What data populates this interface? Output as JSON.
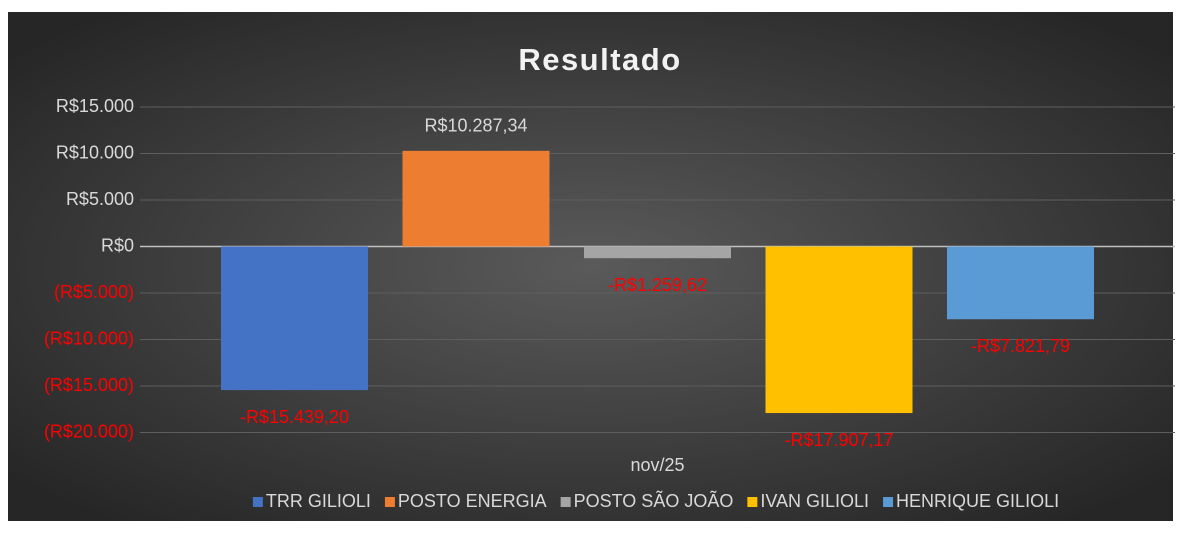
{
  "chart_data": {
    "type": "bar",
    "title": "Resultado",
    "categories": [
      "nov/25"
    ],
    "series": [
      {
        "name": "TRR GILIOLI",
        "color": "#4472c4",
        "values": [
          -15439.2
        ],
        "value_labels": [
          "-R$15.439,20"
        ]
      },
      {
        "name": "POSTO ENERGIA",
        "color": "#ed7d31",
        "values": [
          10287.34
        ],
        "value_labels": [
          "R$10.287,34"
        ]
      },
      {
        "name": "POSTO SÃO JOÃO",
        "color": "#a5a5a5",
        "values": [
          -1259.62
        ],
        "value_labels": [
          "-R$1.259,62"
        ]
      },
      {
        "name": "IVAN GILIOLI",
        "color": "#ffc000",
        "values": [
          -17907.17
        ],
        "value_labels": [
          "-R$17.907,17"
        ]
      },
      {
        "name": "HENRIQUE GILIOLI",
        "color": "#5b9bd5",
        "values": [
          -7821.79
        ],
        "value_labels": [
          "-R$7.821,79"
        ]
      }
    ],
    "ylim": [
      -20000,
      15000
    ],
    "yticks": [
      {
        "value": -20000,
        "label": "(R$20.000)"
      },
      {
        "value": -15000,
        "label": "(R$15.000)"
      },
      {
        "value": -10000,
        "label": "(R$10.000)"
      },
      {
        "value": -5000,
        "label": "(R$5.000)"
      },
      {
        "value": 0,
        "label": "R$0"
      },
      {
        "value": 5000,
        "label": "R$5.000"
      },
      {
        "value": 10000,
        "label": "R$10.000"
      },
      {
        "value": 15000,
        "label": "R$15.000"
      }
    ],
    "grid": true,
    "negative_color": "#ff0000",
    "legend": "bottom"
  }
}
